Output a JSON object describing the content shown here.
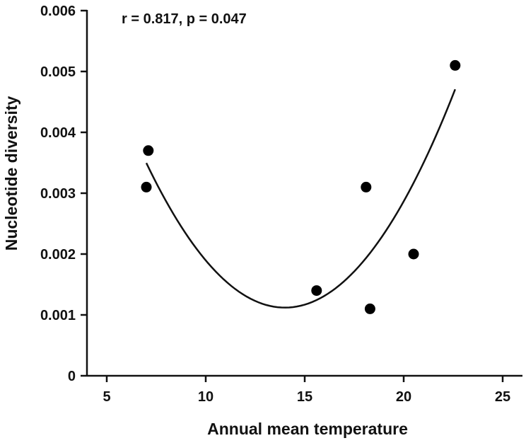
{
  "chart_data": {
    "type": "scatter",
    "title": "",
    "xlabel": "Annual mean temperature",
    "ylabel": "Nucleotide diversity",
    "xlim": [
      4,
      26
    ],
    "ylim": [
      0,
      0.006
    ],
    "xticks": [
      5,
      10,
      15,
      20,
      25
    ],
    "xtick_labels": [
      "5",
      "10",
      "15",
      "20",
      "25"
    ],
    "yticks": [
      0,
      0.001,
      0.002,
      0.003,
      0.004,
      0.005,
      0.006
    ],
    "ytick_labels": [
      "0",
      "0.001",
      "0.002",
      "0.003",
      "0.004",
      "0.005",
      "0.006"
    ],
    "grid": false,
    "annotation": "r = 0.817, p = 0.047",
    "points": [
      {
        "x": 7.0,
        "y": 0.0031
      },
      {
        "x": 7.1,
        "y": 0.0037
      },
      {
        "x": 15.6,
        "y": 0.0014
      },
      {
        "x": 18.1,
        "y": 0.0031
      },
      {
        "x": 18.3,
        "y": 0.0011
      },
      {
        "x": 20.5,
        "y": 0.002
      },
      {
        "x": 22.6,
        "y": 0.0051
      }
    ],
    "fit": {
      "type": "quadratic",
      "x_range": [
        7.0,
        22.6
      ],
      "vertex_x": 14.0,
      "vertex_y": 0.00112,
      "curvature": 4.85e-05
    }
  }
}
